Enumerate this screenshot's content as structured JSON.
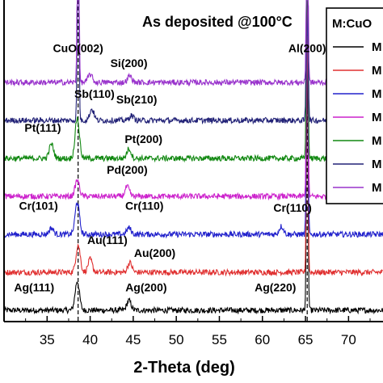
{
  "chart_data": {
    "type": "line",
    "title": "As deposited @100°C",
    "xlabel": "2-Theta (deg)",
    "ylabel": "",
    "xlim": [
      30,
      74
    ],
    "xticks": [
      35,
      40,
      45,
      50,
      55,
      60,
      65,
      70
    ],
    "legend": {
      "title": "M:CuO",
      "position": "top-right",
      "entry_labels": [
        "M",
        "M",
        "M",
        "M",
        "M",
        "M",
        "M"
      ]
    },
    "reference_lines": [
      38.6,
      65.2
    ],
    "series": [
      {
        "color": "#000000",
        "offset": 0,
        "peaks": [
          [
            38.5,
            36
          ],
          [
            44.5,
            12
          ],
          [
            65.2,
            300
          ]
        ]
      },
      {
        "color": "#e03030",
        "offset": 1,
        "peaks": [
          [
            38.6,
            34
          ],
          [
            40.0,
            16
          ],
          [
            44.6,
            12
          ],
          [
            65.2,
            300
          ]
        ]
      },
      {
        "color": "#2222cc",
        "offset": 2,
        "peaks": [
          [
            35.5,
            8
          ],
          [
            38.5,
            40
          ],
          [
            44.5,
            8
          ],
          [
            62.2,
            10
          ],
          [
            65.2,
            300
          ]
        ]
      },
      {
        "color": "#cc22cc",
        "offset": 3,
        "peaks": [
          [
            38.5,
            20
          ],
          [
            44.3,
            12
          ],
          [
            65.2,
            300
          ]
        ]
      },
      {
        "color": "#118811",
        "offset": 4,
        "peaks": [
          [
            35.5,
            18
          ],
          [
            38.5,
            50
          ],
          [
            44.5,
            12
          ],
          [
            65.2,
            300
          ]
        ]
      },
      {
        "color": "#222277",
        "offset": 5,
        "peaks": [
          [
            38.6,
            300
          ],
          [
            40.2,
            14
          ],
          [
            44.8,
            6
          ],
          [
            65.2,
            300
          ]
        ]
      },
      {
        "color": "#9933cc",
        "offset": 6,
        "peaks": [
          [
            38.6,
            300
          ],
          [
            40.0,
            10
          ],
          [
            44.6,
            8
          ],
          [
            65.2,
            300
          ]
        ]
      }
    ],
    "annotations": [
      {
        "text": "CuO(002)",
        "x": 38.6,
        "offset": 6.8
      },
      {
        "text": "Al(200)",
        "x": 65.2,
        "offset": 6.8
      },
      {
        "text": "Si(200)",
        "x": 44.5,
        "offset": 6.4
      },
      {
        "text": "Sb(110)",
        "x": 40.5,
        "offset": 5.6
      },
      {
        "text": "Sb(210)",
        "x": 45.4,
        "offset": 5.45
      },
      {
        "text": "Pt(111)",
        "x": 34.5,
        "offset": 4.7
      },
      {
        "text": "Pt(200)",
        "x": 46.2,
        "offset": 4.4
      },
      {
        "text": "Pd(200)",
        "x": 44.3,
        "offset": 3.6
      },
      {
        "text": "Cr(101)",
        "x": 34.0,
        "offset": 2.65
      },
      {
        "text": "Cr(110)",
        "x": 46.3,
        "offset": 2.65
      },
      {
        "text": "Cr(110)",
        "x": 63.5,
        "offset": 2.6
      },
      {
        "text": "Au(111)",
        "x": 42.0,
        "offset": 1.75
      },
      {
        "text": "Au(200)",
        "x": 47.5,
        "offset": 1.4
      },
      {
        "text": "Ag(111)",
        "x": 33.5,
        "offset": 0.5
      },
      {
        "text": "Ag(200)",
        "x": 46.5,
        "offset": 0.5
      },
      {
        "text": "Ag(220)",
        "x": 61.5,
        "offset": 0.5
      }
    ]
  }
}
